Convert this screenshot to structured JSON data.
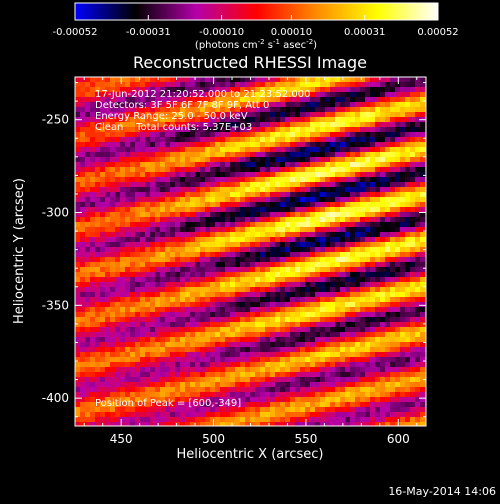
{
  "colorbar": {
    "min": -0.00052,
    "max": 0.00052,
    "ticks": [
      "-0.00052",
      "-0.00031",
      "-0.00010",
      "0.00010",
      "0.00031",
      "0.00052"
    ],
    "units_prefix": "(photons cm",
    "units_exp1": "-2",
    "units_mid": " s",
    "units_exp2": "-1",
    "units_mid2": " asec",
    "units_exp3": "-2",
    "units_suffix": ")",
    "colors": [
      "#0000ff",
      "#000000",
      "#b400aa",
      "#ff0000",
      "#ff8c00",
      "#ffff00",
      "#ffffff"
    ]
  },
  "chart_data": {
    "type": "heatmap",
    "title": "Reconstructed RHESSI Image",
    "xlabel": "Heliocentric X (arcsec)",
    "ylabel": "Heliocentric Y (arcsec)",
    "xlim": [
      425,
      615
    ],
    "ylim": [
      -415,
      -227
    ],
    "xticks": [
      450,
      500,
      550,
      600
    ],
    "yticks": [
      -250,
      -300,
      -350,
      -400
    ],
    "xtick_labels": [
      "450",
      "500",
      "550",
      "600"
    ],
    "ytick_labels": [
      "-250",
      "-300",
      "-350",
      "-400"
    ],
    "pattern": "diagonal fringe stripes, brightest near top-right",
    "peak": [
      600,
      -349
    ],
    "annotations": {
      "time": "17-Jun-2012 21:20:52.000 to 21:23:52.000",
      "detectors": "Detectors: 3F 5F 6F 7F 8F 9F, Att 0",
      "energy": "Energy Range: 25.0 - 50.0 keV",
      "clean": "Clean    Total counts: 5.37E+03",
      "peak_label": "Position of Peak = [600,-349]"
    }
  },
  "timestamp": "16-May-2014 14:06"
}
